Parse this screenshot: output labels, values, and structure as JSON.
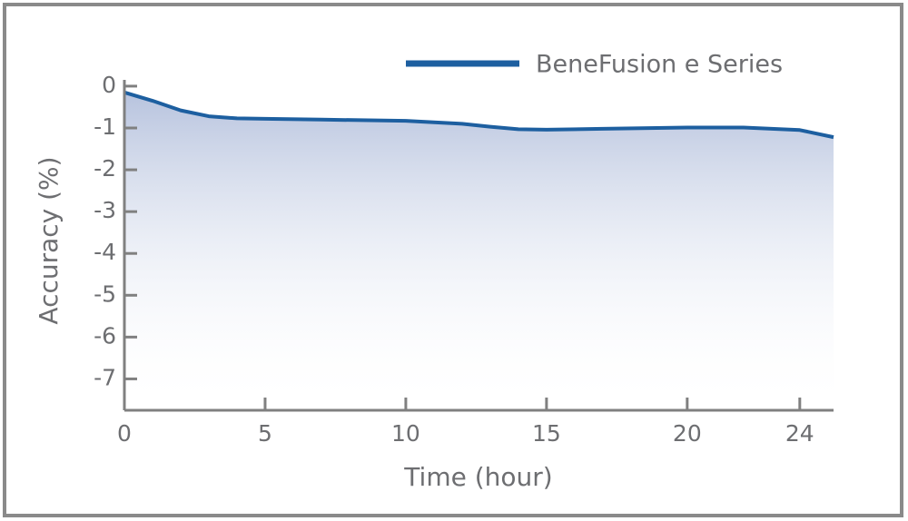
{
  "chart_data": {
    "type": "line",
    "x_label": "Time (hour)",
    "y_label": "Accuracy (%)",
    "xlim": [
      0,
      25.2
    ],
    "xticks": [
      0,
      5,
      10,
      15,
      20,
      24
    ],
    "ylim": [
      -7.75,
      0.15
    ],
    "yticks": [
      0,
      -1,
      -2,
      -3,
      -4,
      -5,
      -6,
      -7
    ],
    "legend": "upper right",
    "series": [
      {
        "name": "BeneFusion e Series",
        "color": "#1d5fa0",
        "x": [
          0,
          1,
          2,
          3,
          4,
          5,
          7,
          10,
          12,
          13,
          14,
          15,
          17,
          20,
          22,
          24,
          25.2
        ],
        "values": [
          -0.15,
          -0.35,
          -0.58,
          -0.72,
          -0.77,
          -0.78,
          -0.8,
          -0.83,
          -0.9,
          -0.97,
          -1.03,
          -1.04,
          -1.02,
          -0.99,
          -0.99,
          -1.05,
          -1.22
        ]
      }
    ]
  }
}
